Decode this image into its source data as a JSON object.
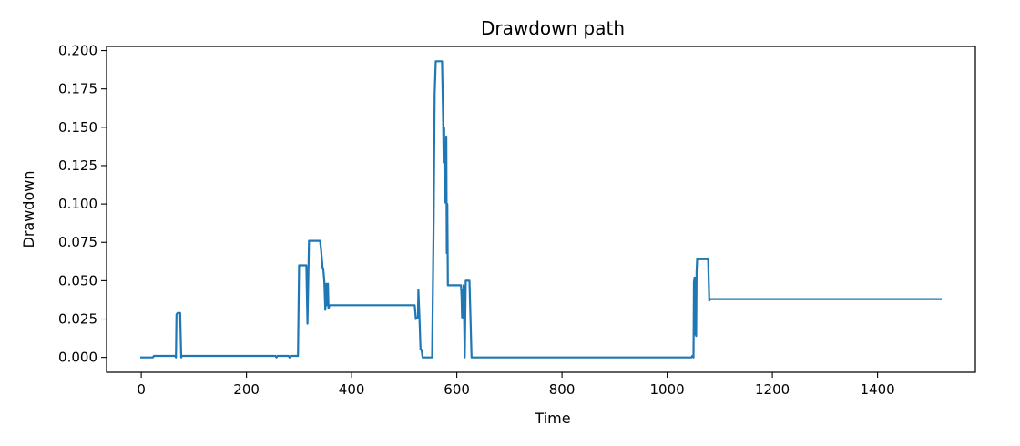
{
  "chart_data": {
    "type": "line",
    "title": "Drawdown path",
    "xlabel": "Time",
    "ylabel": "Drawdown",
    "xlim": [
      -66,
      1586
    ],
    "ylim": [
      -0.0097,
      0.2027
    ],
    "grid": false,
    "legend": "none",
    "x_ticks": [
      0,
      200,
      400,
      600,
      800,
      1000,
      1200,
      1400
    ],
    "x_tick_labels": [
      "0",
      "200",
      "400",
      "600",
      "800",
      "1000",
      "1200",
      "1400"
    ],
    "y_ticks": [
      0.0,
      0.025,
      0.05,
      0.075,
      0.1,
      0.125,
      0.15,
      0.175,
      0.2
    ],
    "y_tick_labels": [
      "0.000",
      "0.025",
      "0.050",
      "0.075",
      "0.100",
      "0.125",
      "0.150",
      "0.175",
      "0.200"
    ],
    "series": [
      {
        "color": "#1f77b4",
        "x": [
          0,
          22,
          24,
          64,
          66,
          67,
          69,
          74,
          76,
          77,
          255,
          257,
          259,
          280,
          282,
          284,
          298,
          300,
          302,
          314,
          316,
          318,
          319,
          321,
          323,
          340,
          342,
          345,
          346,
          348,
          350,
          352,
          353,
          355,
          356,
          358,
          360,
          520,
          522,
          524,
          526,
          527,
          529,
          531,
          533,
          535,
          537,
          539,
          553,
          556,
          558,
          560,
          563,
          572,
          574,
          575,
          576,
          577,
          578,
          579,
          580,
          581,
          582,
          583,
          584,
          585,
          586,
          587,
          590,
          608,
          609,
          610,
          611,
          612,
          613,
          615,
          617,
          619,
          620,
          622,
          624,
          628,
          630,
          632,
          634,
          1046,
          1048,
          1050,
          1051,
          1052,
          1053,
          1054,
          1055,
          1056,
          1057,
          1058,
          1059,
          1060,
          1062,
          1064,
          1078,
          1080,
          1082,
          1084,
          1520
        ],
        "values": [
          0.0,
          0.0,
          0.001,
          0.001,
          0.0,
          0.028,
          0.029,
          0.029,
          0.0,
          0.001,
          0.001,
          0.0,
          0.001,
          0.001,
          0.0,
          0.001,
          0.001,
          0.06,
          0.06,
          0.06,
          0.022,
          0.06,
          0.076,
          0.076,
          0.076,
          0.076,
          0.07,
          0.058,
          0.058,
          0.05,
          0.031,
          0.048,
          0.034,
          0.048,
          0.032,
          0.034,
          0.034,
          0.034,
          0.025,
          0.026,
          0.026,
          0.044,
          0.026,
          0.005,
          0.005,
          0.0,
          0.0,
          0.0,
          0.0,
          0.09,
          0.172,
          0.193,
          0.193,
          0.193,
          0.155,
          0.127,
          0.15,
          0.101,
          0.14,
          0.101,
          0.144,
          0.068,
          0.1,
          0.047,
          0.047,
          0.047,
          0.047,
          0.047,
          0.047,
          0.047,
          0.04,
          0.026,
          0.044,
          0.026,
          0.047,
          0.0,
          0.05,
          0.05,
          0.05,
          0.05,
          0.05,
          0.0,
          0.0,
          0.0,
          0.0,
          0.0,
          0.001,
          0.0,
          0.049,
          0.052,
          0.015,
          0.052,
          0.014,
          0.056,
          0.064,
          0.064,
          0.064,
          0.064,
          0.064,
          0.064,
          0.064,
          0.037,
          0.038,
          0.038,
          0.038
        ]
      }
    ]
  }
}
